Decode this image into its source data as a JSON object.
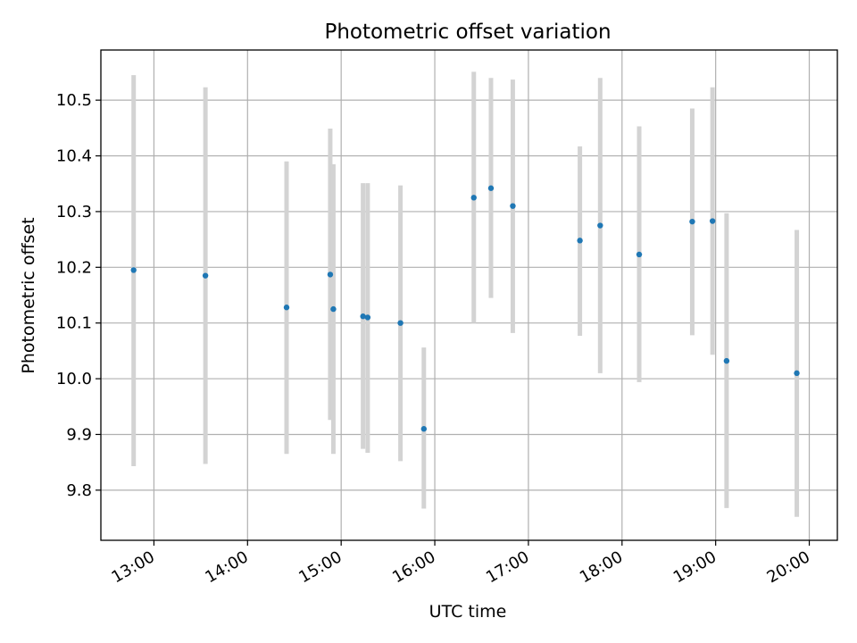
{
  "chart_data": {
    "type": "scatter",
    "title": "Photometric offset variation",
    "xlabel": "UTC time",
    "ylabel": "Photometric offset",
    "x_ticks": [
      "13:00",
      "14:00",
      "15:00",
      "16:00",
      "17:00",
      "18:00",
      "19:00",
      "20:00"
    ],
    "y_ticks": [
      "9.8",
      "9.9",
      "10.0",
      "10.1",
      "10.2",
      "10.3",
      "10.4",
      "10.5"
    ],
    "ylim": [
      9.71,
      10.59
    ],
    "xlim": [
      "12:26",
      "20:18"
    ],
    "grid": true,
    "legend": "none",
    "marker_color": "#1f77b4",
    "errorbar_color": "#d3d3d3",
    "series": [
      {
        "x": [
          "12:47",
          "13:33",
          "14:25",
          "14:53",
          "14:55",
          "15:14",
          "15:17",
          "15:38",
          "15:53",
          "16:25",
          "16:36",
          "16:50",
          "17:33",
          "17:46",
          "18:11",
          "18:45",
          "18:58",
          "19:07",
          "19:52"
        ],
        "y": [
          10.195,
          10.185,
          10.128,
          10.187,
          10.125,
          10.112,
          10.11,
          10.1,
          9.91,
          10.325,
          10.342,
          10.31,
          10.248,
          10.275,
          10.223,
          10.282,
          10.283,
          10.032,
          10.01
        ],
        "y_low": [
          9.843,
          9.847,
          9.865,
          9.926,
          9.865,
          9.874,
          9.867,
          9.852,
          9.767,
          10.1,
          10.145,
          10.082,
          10.077,
          10.01,
          9.994,
          10.078,
          10.043,
          9.768,
          9.752
        ],
        "y_high": [
          10.545,
          10.523,
          10.39,
          10.449,
          10.385,
          10.351,
          10.351,
          10.347,
          10.056,
          10.551,
          10.54,
          10.537,
          10.417,
          10.54,
          10.453,
          10.485,
          10.523,
          10.297,
          10.267
        ]
      }
    ]
  }
}
